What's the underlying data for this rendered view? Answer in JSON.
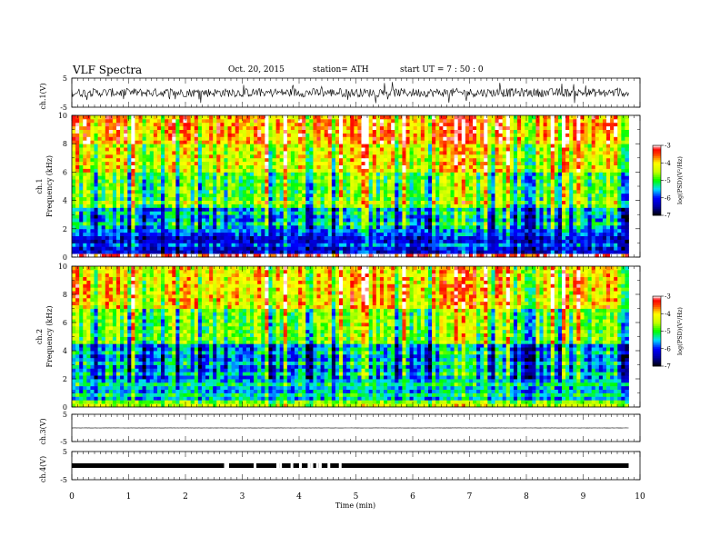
{
  "header": {
    "title": "VLF  Spectra",
    "date": "Oct. 20, 2015",
    "station": "station= ATH",
    "start_ut": "start  UT  =   7 : 50 : 0"
  },
  "chart_data": [
    {
      "type": "line",
      "panel": "ch1-waveform",
      "ylabel": "ch.1(V)",
      "ylim": [
        -5,
        5
      ],
      "y_ticks": [
        "5",
        "-5"
      ],
      "x_range": [
        0,
        10
      ],
      "data_end_min": 9.8,
      "baseline": 0,
      "noise_amplitude": 1.5,
      "color": "#000000"
    },
    {
      "type": "heatmap",
      "panel": "ch1-spectrogram",
      "title": "ch.1",
      "ylabel": "Frequency  (kHz)",
      "ylim": [
        0,
        10
      ],
      "y_ticks": [
        "0",
        "2",
        "4",
        "6",
        "8",
        "10"
      ],
      "x_range": [
        0,
        10
      ],
      "data_end_min": 9.8,
      "value_range_logPSD": [
        -7,
        -3
      ],
      "colorbar": {
        "label": "log(PSD)(V²/Hz)",
        "ticks": [
          "-3",
          "-4",
          "-5",
          "-6",
          "-7"
        ],
        "colors": [
          "#ffffff",
          "#ff0000",
          "#ffff00",
          "#00ff00",
          "#00ffff",
          "#0000ff",
          "#000000"
        ]
      },
      "band_levels": [
        {
          "f_khz": [
            0.0,
            0.3
          ],
          "logPSD": -3.5
        },
        {
          "f_khz": [
            0.3,
            1.8
          ],
          "logPSD": -6.3
        },
        {
          "f_khz": [
            1.8,
            3.5
          ],
          "logPSD": -5.8
        },
        {
          "f_khz": [
            3.5,
            6.0
          ],
          "logPSD": -5.0
        },
        {
          "f_khz": [
            6.0,
            8.0
          ],
          "logPSD": -4.4
        },
        {
          "f_khz": [
            8.0,
            10.0
          ],
          "logPSD": -3.9
        }
      ]
    },
    {
      "type": "heatmap",
      "panel": "ch2-spectrogram",
      "title": "ch.2",
      "ylabel": "Frequency  (kHz)",
      "ylim": [
        0,
        10
      ],
      "y_ticks": [
        "0",
        "2",
        "4",
        "6",
        "8",
        "10"
      ],
      "x_range": [
        0,
        10
      ],
      "data_end_min": 9.8,
      "value_range_logPSD": [
        -7,
        -3
      ],
      "colorbar": {
        "label": "log(PSD)(V²/Hz)",
        "ticks": [
          "-3",
          "-4",
          "-5",
          "-6",
          "-7"
        ],
        "colors": [
          "#ffffff",
          "#ff0000",
          "#ffff00",
          "#00ff00",
          "#00ffff",
          "#0000ff",
          "#000000"
        ]
      },
      "band_levels": [
        {
          "f_khz": [
            0.0,
            0.6
          ],
          "logPSD": -4.8
        },
        {
          "f_khz": [
            0.6,
            2.0
          ],
          "logPSD": -5.6
        },
        {
          "f_khz": [
            2.0,
            4.5
          ],
          "logPSD": -5.9
        },
        {
          "f_khz": [
            4.5,
            7.0
          ],
          "logPSD": -4.9
        },
        {
          "f_khz": [
            7.0,
            10.0
          ],
          "logPSD": -4.2
        }
      ]
    },
    {
      "type": "line",
      "panel": "ch3-waveform",
      "ylabel": "ch.3(V)",
      "ylim": [
        -5,
        5
      ],
      "y_ticks": [
        "5",
        "-5"
      ],
      "x_range": [
        0,
        10
      ],
      "data_end_min": 9.8,
      "baseline": 0,
      "noise_amplitude": 0.05,
      "color": "#000000"
    },
    {
      "type": "line",
      "panel": "ch4-waveform",
      "ylabel": "ch.4(V)",
      "ylim": [
        -5,
        5
      ],
      "y_ticks": [
        "5",
        "-5"
      ],
      "x_range": [
        0,
        10
      ],
      "data_end_min": 9.8,
      "baseline": 0,
      "noise_amplitude": 0.35,
      "gaps_min": [
        2.68,
        2.7,
        2.72,
        3.2,
        3.6,
        3.65,
        3.85,
        4.0,
        4.15,
        4.2,
        4.3,
        4.35,
        4.5,
        4.7
      ],
      "color": "#000000"
    }
  ],
  "x_axis": {
    "label": "Time  (min)",
    "ticks": [
      "0",
      "1",
      "2",
      "3",
      "4",
      "5",
      "6",
      "7",
      "8",
      "9",
      "10"
    ]
  }
}
